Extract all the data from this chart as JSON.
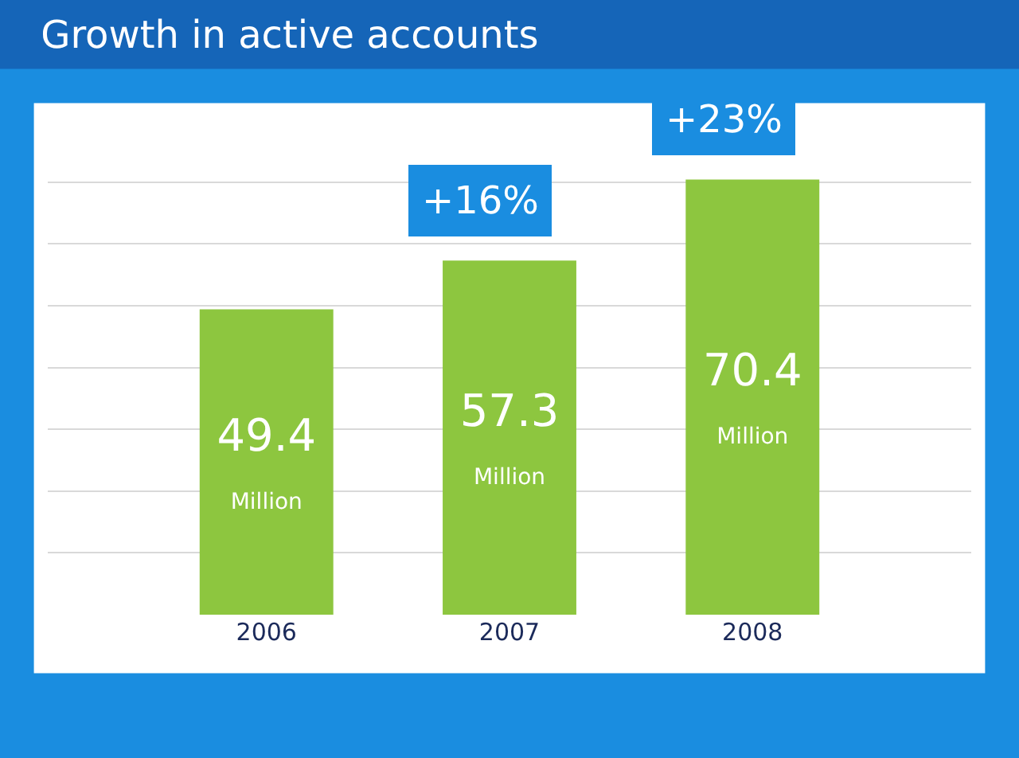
{
  "chart_data": {
    "type": "bar",
    "title": "Growth in active accounts",
    "categories": [
      "2006",
      "2007",
      "2008"
    ],
    "values": [
      49.4,
      57.3,
      70.4
    ],
    "color": "#8dc63f",
    "value_labels": [
      "49.4 Million",
      "57.3 Million",
      "70.4 Million"
    ],
    "annotations": [
      {
        "text": "+16%",
        "x": "2007",
        "y": 57.3
      },
      {
        "text": "+23%",
        "x": "2008",
        "y": 70.4
      }
    ],
    "grid": "y"
  }
}
